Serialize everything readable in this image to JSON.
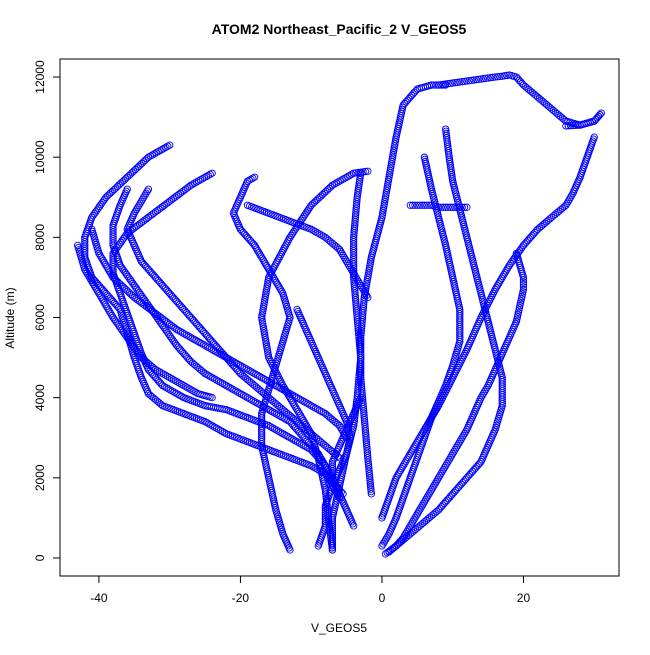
{
  "chart_data": {
    "type": "scatter",
    "title": "ATOM2 Northeast_Pacific_2 V_GEOS5",
    "xlabel": "V_GEOS5",
    "ylabel": "Altitude (m)",
    "xlim": [
      -45.5,
      33.5
    ],
    "ylim": [
      -450,
      12450
    ],
    "x_ticks": [
      -40,
      -20,
      0,
      20
    ],
    "x_tick_labels": [
      "-40",
      "-20",
      "0",
      "20"
    ],
    "y_ticks": [
      0,
      2000,
      4000,
      6000,
      8000,
      10000,
      12000
    ],
    "y_tick_labels": [
      "0",
      "2000",
      "4000",
      "6000",
      "8000",
      "10000",
      "12000"
    ],
    "grid": false,
    "legend": "none",
    "marker": "open-circle",
    "color": "#0000ff",
    "series": [
      {
        "x": [
          -13,
          -14,
          -15,
          -16,
          -17,
          -17,
          -16,
          -15,
          -14,
          -13,
          -14,
          -16,
          -18,
          -20,
          -21,
          -20,
          -19,
          -18
        ],
        "y": [
          200,
          600,
          1200,
          2000,
          2800,
          3600,
          4200,
          4800,
          5400,
          6000,
          6600,
          7200,
          7800,
          8200,
          8600,
          9000,
          9400,
          9500
        ]
      },
      {
        "x": [
          -7,
          -7.5,
          -8,
          -9,
          -10,
          -12,
          -14,
          -16,
          -17,
          -16,
          -13,
          -10,
          -7,
          -4,
          -2
        ],
        "y": [
          200,
          900,
          1700,
          2500,
          3100,
          3700,
          4300,
          5000,
          6000,
          7000,
          8000,
          8800,
          9300,
          9600,
          9650
        ]
      },
      {
        "x": [
          -7,
          -7,
          -6,
          -5,
          -4,
          -3.5,
          -3,
          -3.5,
          -4,
          -4,
          -3.5,
          -3
        ],
        "y": [
          200,
          1000,
          1800,
          2600,
          3300,
          4000,
          5000,
          6000,
          7000,
          8000,
          9000,
          9600
        ]
      },
      {
        "x": [
          -1.5,
          -2,
          -2.5,
          -3,
          -3,
          -2.5,
          -1.5,
          0,
          1,
          2,
          3,
          5,
          7,
          9
        ],
        "y": [
          1600,
          2500,
          3500,
          4500,
          5500,
          6500,
          7500,
          8500,
          9500,
          10500,
          11300,
          11700,
          11800,
          11800
        ]
      },
      {
        "x": [
          8,
          10,
          12,
          14,
          16,
          17,
          18,
          19,
          20,
          22,
          24,
          26,
          28,
          30,
          31,
          30,
          28,
          26
        ],
        "y": [
          11800,
          11850,
          11900,
          11950,
          12000,
          12020,
          12050,
          12000,
          11800,
          11500,
          11200,
          10900,
          10800,
          10900,
          11100,
          10900,
          10800,
          10780
        ]
      },
      {
        "x": [
          30,
          29,
          28,
          27,
          26,
          24,
          22,
          20,
          18,
          16,
          14,
          12,
          10,
          8,
          6,
          4,
          2,
          1,
          0
        ],
        "y": [
          10500,
          10000,
          9500,
          9100,
          8800,
          8500,
          8200,
          7800,
          7300,
          6700,
          6000,
          5200,
          4500,
          3800,
          3200,
          2600,
          2000,
          1500,
          1000
        ]
      },
      {
        "x": [
          6,
          7,
          8,
          9,
          10,
          11,
          11,
          10,
          9,
          8,
          7,
          6,
          5,
          4,
          3,
          2,
          1,
          0
        ],
        "y": [
          10000,
          9200,
          8500,
          7800,
          7000,
          6200,
          5400,
          4800,
          4300,
          3900,
          3500,
          3000,
          2500,
          2000,
          1500,
          1000,
          600,
          300
        ]
      },
      {
        "x": [
          4,
          5,
          6,
          7,
          8,
          9,
          10,
          11,
          12
        ],
        "y": [
          8800,
          8800,
          8800,
          8800,
          8750,
          8750,
          8750,
          8750,
          8750
        ]
      },
      {
        "x": [
          9,
          9.5,
          10,
          11,
          12,
          13,
          14,
          15,
          16,
          17,
          17,
          16,
          15,
          14,
          12,
          10,
          8,
          6,
          4,
          2,
          0.5
        ],
        "y": [
          10700,
          10000,
          9400,
          8700,
          8000,
          7300,
          6600,
          5900,
          5200,
          4500,
          3800,
          3200,
          2800,
          2400,
          2000,
          1600,
          1200,
          900,
          600,
          300,
          100
        ]
      },
      {
        "x": [
          19,
          19.5,
          20,
          20,
          19.5,
          19,
          18,
          17,
          16,
          15,
          14,
          13,
          12,
          11,
          10,
          9,
          8,
          7,
          6,
          5,
          4,
          3,
          2,
          1
        ],
        "y": [
          7600,
          7300,
          7000,
          6700,
          6300,
          5900,
          5500,
          5100,
          4700,
          4300,
          4000,
          3600,
          3200,
          2900,
          2600,
          2300,
          2000,
          1700,
          1400,
          1100,
          800,
          500,
          300,
          150
        ]
      },
      {
        "x": [
          -30,
          -33,
          -36,
          -39,
          -41,
          -42,
          -42,
          -41,
          -39,
          -37,
          -36,
          -35,
          -34,
          -33,
          -31,
          -28,
          -25,
          -22,
          -19,
          -16,
          -13,
          -10,
          -8,
          -7,
          -6,
          -5.5
        ],
        "y": [
          10300,
          10000,
          9500,
          9000,
          8500,
          8000,
          7500,
          7000,
          6600,
          6200,
          5600,
          5000,
          4500,
          4100,
          3800,
          3600,
          3400,
          3100,
          2900,
          2700,
          2500,
          2300,
          2100,
          1900,
          1700,
          1600
        ]
      },
      {
        "x": [
          -24,
          -27,
          -30,
          -33,
          -36,
          -38,
          -38,
          -37,
          -36,
          -35,
          -34,
          -33,
          -31,
          -28,
          -25,
          -22,
          -19,
          -16,
          -13,
          -10,
          -8,
          -7,
          -6
        ],
        "y": [
          9600,
          9300,
          8900,
          8500,
          8100,
          7600,
          7100,
          6600,
          6100,
          5600,
          5100,
          4700,
          4300,
          4000,
          3800,
          3700,
          3500,
          3300,
          3000,
          2700,
          2300,
          1800,
          1500
        ]
      },
      {
        "x": [
          -36,
          -37,
          -38,
          -38,
          -37,
          -35,
          -33,
          -31,
          -29,
          -27,
          -25,
          -22,
          -19,
          -16,
          -13,
          -11,
          -9,
          -8,
          -7
        ],
        "y": [
          9200,
          8800,
          8300,
          7800,
          7300,
          6800,
          6300,
          5800,
          5300,
          4900,
          4600,
          4300,
          4000,
          3700,
          3400,
          3000,
          2600,
          2300,
          2000
        ]
      },
      {
        "x": [
          -33,
          -34,
          -35,
          -36,
          -35,
          -34,
          -32,
          -30,
          -28,
          -26,
          -24,
          -22,
          -20,
          -18,
          -16,
          -14,
          -12,
          -10,
          -8,
          -6
        ],
        "y": [
          9200,
          8900,
          8600,
          8200,
          7800,
          7400,
          7000,
          6600,
          6200,
          5800,
          5400,
          5000,
          4600,
          4300,
          4000,
          3700,
          3400,
          3100,
          2800,
          2500
        ]
      },
      {
        "x": [
          -41,
          -40,
          -38,
          -35,
          -32,
          -29,
          -26,
          -23,
          -20,
          -17,
          -14,
          -11,
          -8,
          -6,
          -5
        ],
        "y": [
          8200,
          7600,
          7000,
          6500,
          6100,
          5700,
          5400,
          5100,
          4800,
          4500,
          4200,
          3900,
          3600,
          3300,
          3000
        ]
      },
      {
        "x": [
          -43,
          -42,
          -40,
          -38,
          -36,
          -34,
          -32,
          -30,
          -28,
          -26,
          -24
        ],
        "y": [
          7800,
          7200,
          6600,
          6000,
          5500,
          5000,
          4700,
          4500,
          4300,
          4100,
          4000
        ]
      },
      {
        "x": [
          -9,
          -8,
          -8,
          -7,
          -6,
          -5,
          -4.5,
          -5,
          -6,
          -7,
          -8,
          -9,
          -10,
          -11,
          -12
        ],
        "y": [
          300,
          800,
          1300,
          1800,
          2200,
          2600,
          3000,
          3400,
          3800,
          4200,
          4600,
          5000,
          5400,
          5800,
          6200
        ]
      },
      {
        "x": [
          -4,
          -5,
          -6,
          -7,
          -7,
          -6,
          -5,
          -4,
          -3
        ],
        "y": [
          800,
          1200,
          1600,
          2000,
          2400,
          2800,
          3200,
          3600,
          4000
        ]
      },
      {
        "x": [
          -2,
          -3,
          -4,
          -5,
          -6,
          -8,
          -10,
          -13,
          -16,
          -19
        ],
        "y": [
          6500,
          6800,
          7100,
          7400,
          7700,
          8000,
          8200,
          8400,
          8600,
          8800
        ]
      }
    ]
  }
}
